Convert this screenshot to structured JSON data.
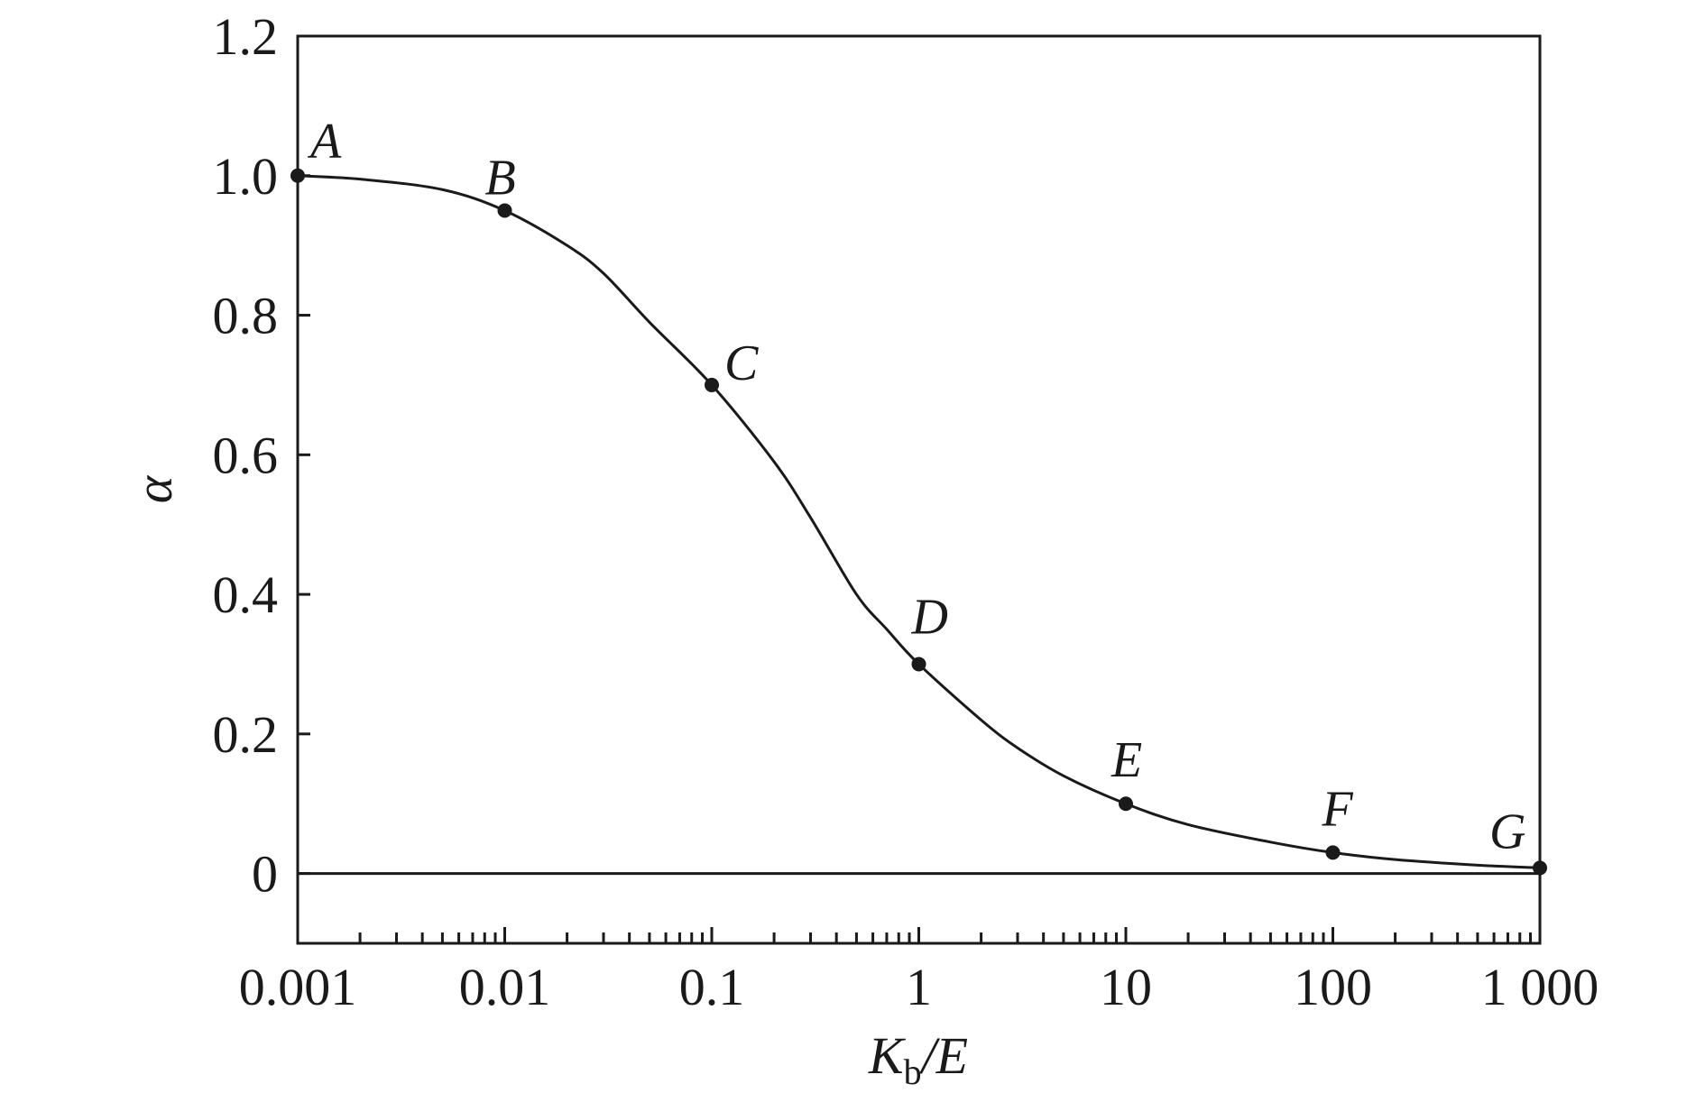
{
  "chart_data": {
    "type": "line",
    "xscale": "log",
    "xlim": [
      0.001,
      1000
    ],
    "ylim": [
      -0.1,
      1.2
    ],
    "grid": false,
    "xlabel": {
      "main": "K",
      "sub": "b",
      "suffix": "/E"
    },
    "ylabel": "α",
    "x_tick_labels": [
      {
        "value": 0.001,
        "label": "0.001"
      },
      {
        "value": 0.01,
        "label": "0.01"
      },
      {
        "value": 0.1,
        "label": "0.1"
      },
      {
        "value": 1,
        "label": "1"
      },
      {
        "value": 10,
        "label": "10"
      },
      {
        "value": 100,
        "label": "100"
      },
      {
        "value": 1000,
        "label": "1 000"
      }
    ],
    "y_tick_labels": [
      {
        "value": 0,
        "label": "0"
      },
      {
        "value": 0.2,
        "label": "0.2"
      },
      {
        "value": 0.4,
        "label": "0.4"
      },
      {
        "value": 0.6,
        "label": "0.6"
      },
      {
        "value": 0.8,
        "label": "0.8"
      },
      {
        "value": 1.0,
        "label": "1.0"
      },
      {
        "value": 1.2,
        "label": "1.2"
      }
    ],
    "reference_line_y": 0,
    "points": [
      {
        "label": "A",
        "x": 0.001,
        "y": 1.0
      },
      {
        "label": "B",
        "x": 0.01,
        "y": 0.95
      },
      {
        "label": "C",
        "x": 0.1,
        "y": 0.7
      },
      {
        "label": "D",
        "x": 1,
        "y": 0.3
      },
      {
        "label": "E",
        "x": 10,
        "y": 0.1
      },
      {
        "label": "F",
        "x": 100,
        "y": 0.03
      },
      {
        "label": "G",
        "x": 1000,
        "y": 0.008
      }
    ],
    "curve": [
      [
        0.001,
        1.0
      ],
      [
        0.002,
        0.995
      ],
      [
        0.005,
        0.98
      ],
      [
        0.01,
        0.95
      ],
      [
        0.02,
        0.9
      ],
      [
        0.03,
        0.86
      ],
      [
        0.05,
        0.79
      ],
      [
        0.1,
        0.7
      ],
      [
        0.2,
        0.59
      ],
      [
        0.3,
        0.51
      ],
      [
        0.5,
        0.4
      ],
      [
        0.7,
        0.35
      ],
      [
        1,
        0.3
      ],
      [
        2,
        0.22
      ],
      [
        3,
        0.18
      ],
      [
        5,
        0.14
      ],
      [
        10,
        0.1
      ],
      [
        20,
        0.07
      ],
      [
        50,
        0.045
      ],
      [
        100,
        0.03
      ],
      [
        200,
        0.02
      ],
      [
        500,
        0.012
      ],
      [
        1000,
        0.008
      ]
    ],
    "line_color": "#1a1a1a"
  }
}
